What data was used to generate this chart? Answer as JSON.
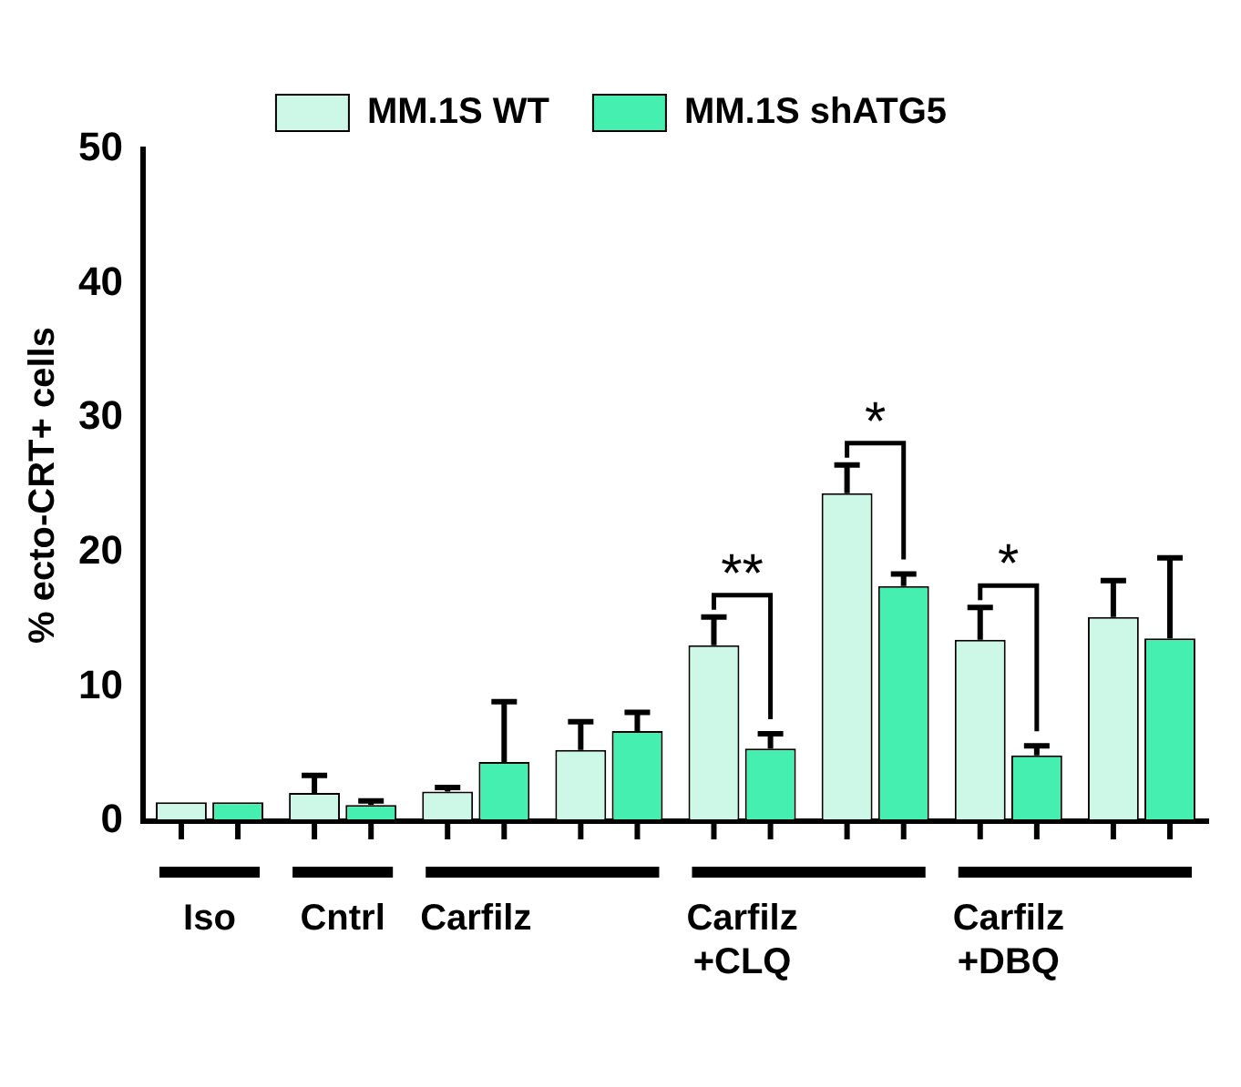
{
  "chart_data": {
    "type": "bar",
    "ylabel": "% ecto-CRT+ cells",
    "categories": [
      "Iso",
      "Cntrl",
      "Carfilz",
      null,
      "Carfilz +CLQ",
      null,
      "Carfilz +DBQ",
      null
    ],
    "series": [
      {
        "name": "MM.1S WT",
        "color": "#cdf7e6",
        "values": [
          1.4,
          2.1,
          2.2,
          5.3,
          13.1,
          24.4,
          13.5,
          15.2
        ],
        "errors": [
          null,
          [
            2.1,
            3.4
          ],
          [
            2.2,
            2.5
          ],
          [
            5.3,
            7.4
          ],
          [
            13.1,
            15.2
          ],
          [
            24.4,
            26.5
          ],
          [
            13.5,
            15.9
          ],
          [
            15.2,
            17.9
          ]
        ]
      },
      {
        "name": "MM.1S shATG5",
        "color": "#45efb0",
        "values": [
          1.4,
          1.2,
          4.4,
          6.7,
          5.4,
          17.5,
          4.9,
          13.6
        ],
        "errors": [
          null,
          [
            1.2,
            1.5
          ],
          [
            4.4,
            8.9
          ],
          [
            6.7,
            8.1
          ],
          [
            5.4,
            6.5
          ],
          [
            17.5,
            18.4
          ],
          [
            4.9,
            5.6
          ],
          [
            13.6,
            19.6
          ]
        ]
      }
    ],
    "ylim": [
      0,
      50
    ],
    "yticks": [
      0,
      10,
      20,
      30,
      40,
      50
    ],
    "grid": false,
    "legend": "top",
    "annotations": [
      "**",
      "*",
      "*"
    ]
  }
}
